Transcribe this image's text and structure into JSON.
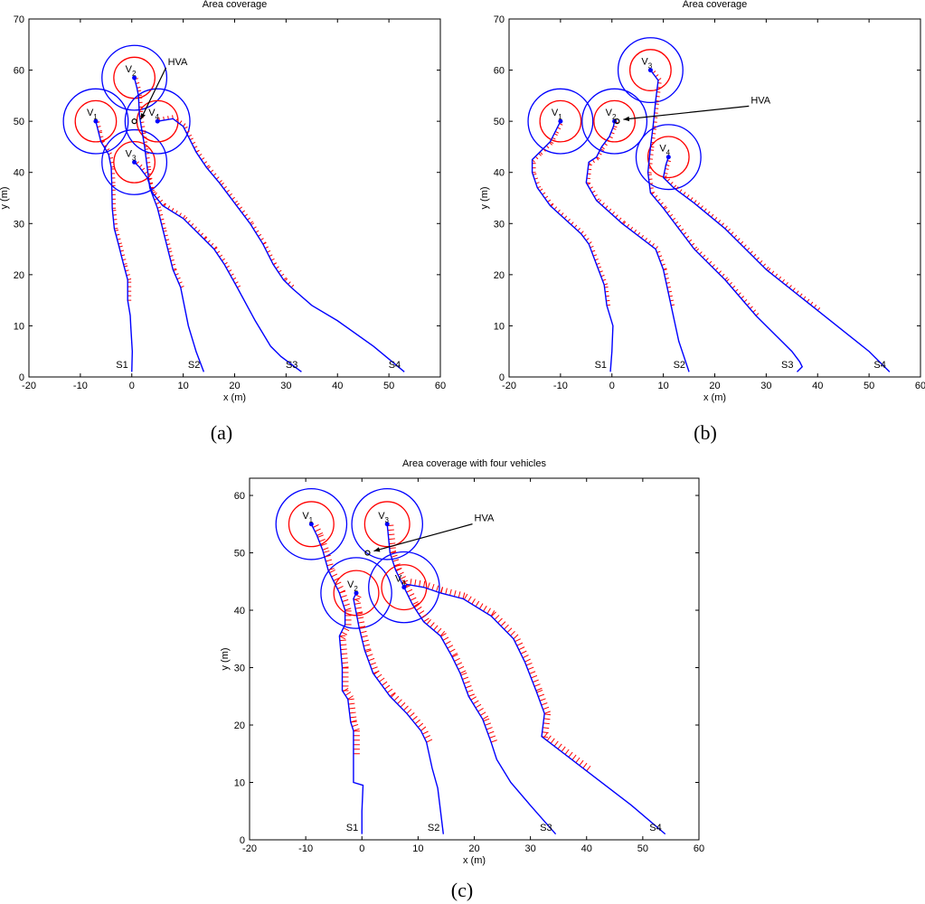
{
  "chart_data": [
    {
      "panel": "(a)",
      "type": "line",
      "title": "Area coverage",
      "xlabel": "x (m)",
      "ylabel": "y (m)",
      "xlim": [
        -20,
        60
      ],
      "ylim": [
        0,
        70
      ],
      "xticks": [
        -20,
        -10,
        0,
        10,
        20,
        30,
        40,
        50,
        60
      ],
      "yticks": [
        0,
        10,
        20,
        30,
        40,
        50,
        60,
        70
      ],
      "grid": false,
      "hva": {
        "label": "HVA",
        "x": 0.5,
        "y": 50,
        "label_x": 7,
        "label_y": 61
      },
      "vehicles": [
        {
          "name": "V1",
          "x": -7,
          "y": 50,
          "start_label": "S1",
          "path": [
            [
              0,
              1
            ],
            [
              0.1,
              5
            ],
            [
              -0.2,
              10
            ],
            [
              -0.3,
              12
            ],
            [
              -0.8,
              15
            ],
            [
              -0.8,
              19
            ],
            [
              -1.6,
              22
            ],
            [
              -2.6,
              26
            ],
            [
              -3.4,
              29
            ],
            [
              -3.8,
              33
            ],
            [
              -3.9,
              38
            ],
            [
              -4,
              41
            ],
            [
              -4.5,
              43.5
            ],
            [
              -6,
              46
            ],
            [
              -6.5,
              48
            ],
            [
              -7,
              50
            ]
          ]
        },
        {
          "name": "V2",
          "x": 0.5,
          "y": 58.5,
          "start_label": "S2",
          "path": [
            [
              14,
              1
            ],
            [
              12.5,
              5
            ],
            [
              11,
              10
            ],
            [
              9.5,
              17.5
            ],
            [
              8,
              21
            ],
            [
              7,
              25
            ],
            [
              6,
              29
            ],
            [
              5,
              33
            ],
            [
              3.5,
              37
            ],
            [
              3,
              41
            ],
            [
              2.5,
              45
            ],
            [
              2,
              48
            ],
            [
              1.5,
              51
            ],
            [
              1.3,
              55
            ],
            [
              1,
              56.5
            ],
            [
              0.5,
              58.5
            ]
          ]
        },
        {
          "name": "V3",
          "x": 0.5,
          "y": 42,
          "start_label": "S3",
          "path": [
            [
              33,
              1
            ],
            [
              29,
              4
            ],
            [
              27,
              6
            ],
            [
              24,
              11
            ],
            [
              20.5,
              17.5
            ],
            [
              18,
              22
            ],
            [
              16,
              25
            ],
            [
              14,
              27
            ],
            [
              10,
              31
            ],
            [
              6,
              33.5
            ],
            [
              4,
              36
            ],
            [
              3,
              39
            ],
            [
              1.5,
              41
            ],
            [
              0.5,
              42
            ]
          ]
        },
        {
          "name": "V4",
          "x": 5,
          "y": 50,
          "start_label": "S4",
          "path": [
            [
              53,
              1
            ],
            [
              47,
              6
            ],
            [
              40,
              11
            ],
            [
              35,
              14
            ],
            [
              31,
              17.5
            ],
            [
              29.5,
              19
            ],
            [
              27.5,
              22
            ],
            [
              25.5,
              26
            ],
            [
              23,
              30
            ],
            [
              20,
              34
            ],
            [
              17,
              38
            ],
            [
              14.5,
              41
            ],
            [
              12.5,
              44
            ],
            [
              11,
              47
            ],
            [
              10,
              49
            ],
            [
              8,
              50.5
            ],
            [
              5,
              50
            ]
          ]
        }
      ]
    },
    {
      "panel": "(b)",
      "type": "line",
      "title": "Area coverage",
      "xlabel": "x (m)",
      "ylabel": "y (m)",
      "xlim": [
        -20,
        60
      ],
      "ylim": [
        0,
        70
      ],
      "xticks": [
        -20,
        -10,
        0,
        10,
        20,
        30,
        40,
        50,
        60
      ],
      "yticks": [
        0,
        10,
        20,
        30,
        40,
        50,
        60,
        70
      ],
      "grid": false,
      "hva": {
        "label": "HVA",
        "x": 1,
        "y": 50,
        "label_x": 27,
        "label_y": 53.5
      },
      "vehicles": [
        {
          "name": "V1",
          "x": -10,
          "y": 50,
          "start_label": "S1",
          "path": [
            [
              -0.3,
              1
            ],
            [
              0,
              5
            ],
            [
              0.2,
              10
            ],
            [
              -1,
              14
            ],
            [
              -1.5,
              18
            ],
            [
              -3,
              22
            ],
            [
              -4.5,
              26
            ],
            [
              -6,
              28
            ],
            [
              -12,
              33.5
            ],
            [
              -14.5,
              37
            ],
            [
              -15.5,
              40
            ],
            [
              -15.5,
              42.5
            ],
            [
              -14,
              44
            ],
            [
              -12,
              46
            ],
            [
              -11,
              48
            ],
            [
              -10,
              50
            ]
          ]
        },
        {
          "name": "V2",
          "x": 0.5,
          "y": 50,
          "start_label": "S2",
          "path": [
            [
              15,
              1
            ],
            [
              13,
              7
            ],
            [
              11.5,
              14
            ],
            [
              10,
              21
            ],
            [
              8.5,
              25
            ],
            [
              2,
              30
            ],
            [
              -3,
              34.5
            ],
            [
              -5,
              38
            ],
            [
              -4.5,
              42
            ],
            [
              -3,
              43
            ],
            [
              -2,
              45
            ],
            [
              -0.5,
              47
            ],
            [
              0.3,
              49
            ],
            [
              0.5,
              50
            ]
          ]
        },
        {
          "name": "V3",
          "x": 7.5,
          "y": 60,
          "start_label": "S3",
          "path": [
            [
              36,
              1
            ],
            [
              37,
              2
            ],
            [
              36.5,
              3
            ],
            [
              35,
              5
            ],
            [
              28,
              12
            ],
            [
              22,
              19
            ],
            [
              16,
              25
            ],
            [
              10,
              33
            ],
            [
              7.5,
              36
            ],
            [
              7,
              40
            ],
            [
              7.5,
              45
            ],
            [
              8,
              49
            ],
            [
              8.5,
              54
            ],
            [
              9,
              58
            ],
            [
              7.5,
              60
            ]
          ]
        },
        {
          "name": "V4",
          "x": 11,
          "y": 43,
          "start_label": "S4",
          "path": [
            [
              54,
              1
            ],
            [
              50,
              5
            ],
            [
              40,
              13
            ],
            [
              30,
              21
            ],
            [
              22,
              29
            ],
            [
              16,
              34
            ],
            [
              12,
              37
            ],
            [
              10,
              39
            ],
            [
              10.5,
              41.5
            ],
            [
              11,
              43
            ]
          ]
        }
      ]
    },
    {
      "panel": "(c)",
      "type": "line",
      "title": "Area coverage with four vehicles",
      "xlabel": "x (m)",
      "ylabel": "y (m)",
      "xlim": [
        -20,
        60
      ],
      "ylim": [
        0,
        63
      ],
      "xticks": [
        -20,
        -10,
        0,
        10,
        20,
        30,
        40,
        50,
        60
      ],
      "yticks": [
        0,
        10,
        20,
        30,
        40,
        50,
        60
      ],
      "grid": false,
      "hva": {
        "label": "HVA",
        "x": 1,
        "y": 50,
        "label_x": 20,
        "label_y": 55.5
      },
      "vehicles": [
        {
          "name": "V1",
          "x": -9,
          "y": 55,
          "start_label": "S1",
          "path": [
            [
              0,
              1
            ],
            [
              0,
              5
            ],
            [
              0.2,
              9.5
            ],
            [
              -1.5,
              10
            ],
            [
              -1.5,
              15
            ],
            [
              -1.5,
              19
            ],
            [
              -2,
              20.5
            ],
            [
              -2.5,
              24.5
            ],
            [
              -3.5,
              26
            ],
            [
              -3.5,
              30
            ],
            [
              -4,
              35.5
            ],
            [
              -3,
              37.5
            ],
            [
              -3,
              40
            ],
            [
              -4,
              43
            ],
            [
              -6,
              47
            ],
            [
              -7,
              50.5
            ],
            [
              -8,
              53
            ],
            [
              -9,
              55
            ]
          ]
        },
        {
          "name": "V2",
          "x": -1,
          "y": 43,
          "start_label": "S2",
          "path": [
            [
              14.5,
              1
            ],
            [
              14,
              5
            ],
            [
              13.5,
              9
            ],
            [
              12.5,
              12.5
            ],
            [
              11.5,
              17
            ],
            [
              10.5,
              19
            ],
            [
              8,
              22
            ],
            [
              5,
              25
            ],
            [
              2,
              29
            ],
            [
              0.5,
              33
            ],
            [
              -0.5,
              37
            ],
            [
              -1,
              39.5
            ],
            [
              -1.5,
              42
            ],
            [
              -1,
              43
            ]
          ]
        },
        {
          "name": "V3",
          "x": 4.5,
          "y": 55,
          "start_label": "S3",
          "path": [
            [
              34.5,
              1
            ],
            [
              30,
              6
            ],
            [
              26.5,
              10
            ],
            [
              24,
              14
            ],
            [
              23,
              17
            ],
            [
              21.5,
              21
            ],
            [
              19,
              25
            ],
            [
              17.5,
              29
            ],
            [
              16,
              32
            ],
            [
              14,
              35.5
            ],
            [
              11,
              38
            ],
            [
              9,
              41
            ],
            [
              7.5,
              44
            ],
            [
              6,
              47
            ],
            [
              5,
              50
            ],
            [
              4.5,
              55
            ]
          ]
        },
        {
          "name": "V4",
          "x": 7.5,
          "y": 44,
          "start_label": "S4",
          "path": [
            [
              54,
              1
            ],
            [
              48,
              6
            ],
            [
              40,
              12
            ],
            [
              32,
              18
            ],
            [
              32.5,
              22
            ],
            [
              31,
              26
            ],
            [
              29,
              31
            ],
            [
              27,
              35
            ],
            [
              23,
              39
            ],
            [
              18,
              42
            ],
            [
              14,
              43
            ],
            [
              11,
              44
            ],
            [
              8,
              44.5
            ],
            [
              7.5,
              44
            ]
          ]
        }
      ]
    }
  ],
  "captions": {
    "a": "(a)",
    "b": "(b)",
    "c": "(c)"
  },
  "colors": {
    "path": "#0000ff",
    "sensor_circle_outer": "#0000ff",
    "sensor_circle_inner": "#ff0000",
    "heading_marks": "#ff0000"
  }
}
